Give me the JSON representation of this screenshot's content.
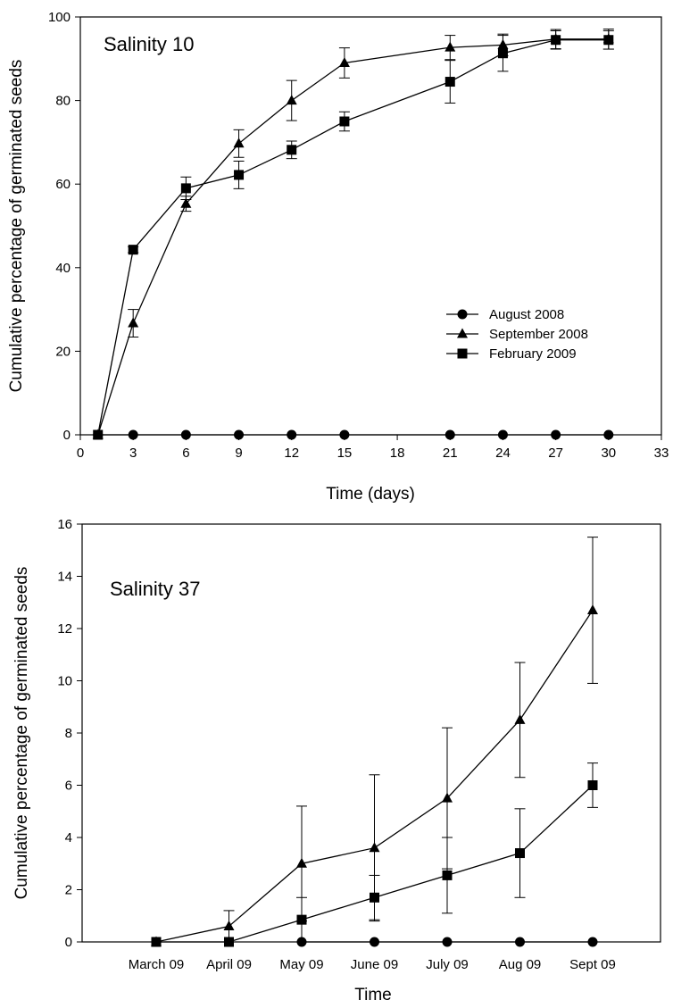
{
  "chart_data": [
    {
      "type": "line",
      "title": "Salinity 10",
      "xlabel": "Time (days)",
      "ylabel": "Cumulative percentage of germinated seeds",
      "xlim": [
        0,
        33
      ],
      "ylim": [
        0,
        100
      ],
      "x_ticks": [
        0,
        3,
        6,
        9,
        12,
        15,
        18,
        21,
        24,
        27,
        30,
        33
      ],
      "y_ticks": [
        0,
        20,
        40,
        60,
        80,
        100
      ],
      "grid": false,
      "legend_position": "center-right",
      "legend": [
        "August 2008",
        "September 2008",
        "February 2009"
      ],
      "series": [
        {
          "name": "August 2008",
          "marker": "circle",
          "x": [
            1,
            3,
            6,
            9,
            12,
            15,
            21,
            24,
            27,
            30
          ],
          "values": [
            0,
            0,
            0,
            0,
            0,
            0,
            0,
            0,
            0,
            0
          ],
          "error": [
            0,
            0,
            0,
            0,
            0,
            0,
            0,
            0,
            0,
            0
          ]
        },
        {
          "name": "September 2008",
          "marker": "triangle",
          "x": [
            1,
            3,
            6,
            9,
            12,
            15,
            21,
            24,
            27,
            30
          ],
          "values": [
            0,
            26.7,
            55.3,
            69.7,
            80.0,
            89.0,
            92.7,
            93.3,
            94.7,
            94.7
          ],
          "error": [
            0,
            3.3,
            1.8,
            3.3,
            4.8,
            3.6,
            2.9,
            2.6,
            2.3,
            2.4
          ]
        },
        {
          "name": "February 2009",
          "marker": "square",
          "x": [
            1,
            3,
            6,
            9,
            12,
            15,
            21,
            24,
            27,
            30
          ],
          "values": [
            0,
            44.3,
            59.0,
            62.2,
            68.2,
            75.0,
            84.5,
            91.3,
            94.5,
            94.5
          ],
          "error": [
            0,
            0.7,
            2.7,
            3.3,
            2.1,
            2.3,
            5.1,
            4.3,
            2.2,
            2.2
          ]
        }
      ]
    },
    {
      "type": "line",
      "title": "Salinity 37",
      "xlabel": "Time",
      "ylabel": "Cumulative percentage of germinated seeds",
      "categories": [
        "March 09",
        "April 09",
        "May 09",
        "June 09",
        "July 09",
        "Aug 09",
        "Sept 09"
      ],
      "ylim": [
        0,
        16
      ],
      "y_ticks": [
        0,
        2,
        4,
        6,
        8,
        10,
        12,
        14,
        16
      ],
      "grid": false,
      "series": [
        {
          "name": "August 2008",
          "marker": "circle",
          "values": [
            null,
            null,
            0,
            0,
            0,
            0,
            0
          ],
          "error": [
            0,
            0,
            0,
            0,
            0,
            0,
            0
          ]
        },
        {
          "name": "September 2008",
          "marker": "triangle",
          "values": [
            0,
            0.6,
            3.0,
            3.6,
            5.5,
            8.5,
            12.7
          ],
          "error": [
            0,
            0.6,
            2.2,
            2.8,
            2.7,
            2.2,
            2.8
          ]
        },
        {
          "name": "February 2009",
          "marker": "square",
          "values": [
            0,
            0,
            0.85,
            1.7,
            2.55,
            3.4,
            6.0
          ],
          "error": [
            0,
            0,
            0.85,
            0.85,
            1.45,
            1.7,
            0.85
          ]
        }
      ]
    }
  ]
}
